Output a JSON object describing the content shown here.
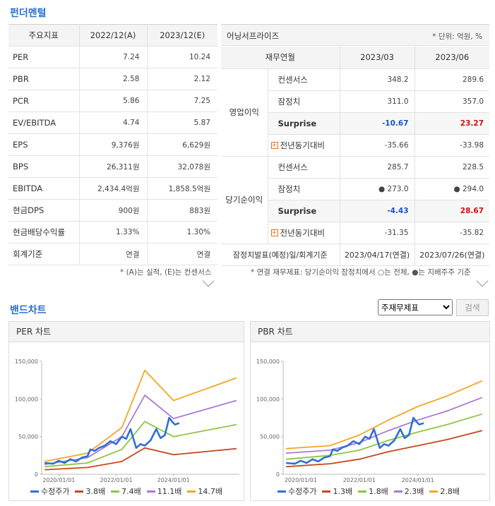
{
  "fundamental": {
    "title": "펀더멘털",
    "indicators_header": [
      "주요지표",
      "2022/12(A)",
      "2023/12(E)"
    ],
    "indicators": [
      {
        "label": "PER",
        "a": "7.24",
        "e": "10.24"
      },
      {
        "label": "PBR",
        "a": "2.58",
        "e": "2.12"
      },
      {
        "label": "PCR",
        "a": "5.86",
        "e": "7.25"
      },
      {
        "label": "EV/EBITDA",
        "a": "4.74",
        "e": "5.87"
      },
      {
        "label": "EPS",
        "a": "9,376원",
        "e": "6,629원"
      },
      {
        "label": "BPS",
        "a": "26,311원",
        "e": "32,078원"
      },
      {
        "label": "EBITDA",
        "a": "2,434.4억원",
        "e": "1,858.5억원"
      },
      {
        "label": "현금DPS",
        "a": "900원",
        "e": "883원"
      },
      {
        "label": "현금배당수익률",
        "a": "1.33%",
        "e": "1.30%"
      },
      {
        "label": "회계기준",
        "a": "연결",
        "e": "연결"
      }
    ],
    "indicators_note": "* (A)는 실적, (E)는 컨센서스",
    "earnings": {
      "title": "어닝서프라이즈",
      "unit": "* 단위: 억원, %",
      "header": [
        "재무연월",
        "2023/03",
        "2023/06"
      ],
      "groups": [
        {
          "name": "영업이익",
          "rows": [
            {
              "label": "컨센서스",
              "v1": "348.2",
              "v2": "289.6"
            },
            {
              "label": "잠정치",
              "v1": "311.0",
              "v2": "357.0"
            },
            {
              "label": "Surprise",
              "v1": "-10.67",
              "v2": "23.27"
            },
            {
              "label": "전년동기대비",
              "v1": "-35.66",
              "v2": "-33.98"
            }
          ]
        },
        {
          "name": "당기순이익",
          "rows": [
            {
              "label": "컨센서스",
              "v1": "285.7",
              "v2": "228.5"
            },
            {
              "label": "잠정치",
              "v1": "● 273.0",
              "v2": "● 294.0"
            },
            {
              "label": "Surprise",
              "v1": "-4.43",
              "v2": "28.67"
            },
            {
              "label": "전년동기대비",
              "v1": "-31.35",
              "v2": "-35.82"
            }
          ]
        }
      ],
      "footer_label": "잠정치발표(예정)일/회계기준",
      "footer_v1": "2023/04/17(연결)",
      "footer_v2": "2023/07/26(연결)",
      "note": "* 연결 재무제표: 당기순이익 잠정치에서 ○는 전체, ●는 지배주주 기준"
    }
  },
  "band": {
    "title": "밴드차트",
    "select_value": "주재무제표",
    "search_label": "검색",
    "per_title": "PER 차트",
    "pbr_title": "PBR 차트"
  },
  "chart_data": [
    {
      "type": "line",
      "title": "PER 차트",
      "x_ticks": [
        "2020/01/01",
        "2022/01/01",
        "2024/01/01"
      ],
      "y_ticks": [
        "0",
        "50,000",
        "100,000",
        "150,000"
      ],
      "ylim": [
        0,
        150000
      ],
      "xlim": [
        2019.4,
        2026.3
      ],
      "series": [
        {
          "name": "수정주가",
          "color": "#2f6fd6",
          "x": [
            2019.5,
            2019.8,
            2020.0,
            2020.2,
            2020.4,
            2020.6,
            2020.8,
            2021.0,
            2021.1,
            2021.25,
            2021.4,
            2021.6,
            2021.8,
            2022.0,
            2022.2,
            2022.35,
            2022.5,
            2022.7,
            2022.85,
            2023.0,
            2023.2,
            2023.4,
            2023.55,
            2023.7,
            2023.85,
            2023.95,
            2024.05,
            2024.2
          ],
          "y": [
            15000,
            14000,
            18000,
            15000,
            20000,
            17000,
            22000,
            24000,
            33000,
            31000,
            35000,
            38000,
            44000,
            40000,
            50000,
            47000,
            60000,
            35000,
            40000,
            38000,
            45000,
            60000,
            48000,
            52000,
            75000,
            70000,
            66000,
            68000
          ]
        },
        {
          "name": "3.8배",
          "color": "#c8461e",
          "x": [
            2019.5,
            2021.0,
            2022.2,
            2023.0,
            2024.0,
            2026.2
          ],
          "y": [
            6000,
            9000,
            17000,
            35000,
            26000,
            34000
          ]
        },
        {
          "name": "7.4배",
          "color": "#8cc63f",
          "x": [
            2019.5,
            2021.0,
            2022.2,
            2023.0,
            2024.0,
            2026.2
          ],
          "y": [
            10000,
            15000,
            33000,
            70000,
            50000,
            66000
          ]
        },
        {
          "name": "11.1배",
          "color": "#a97ad8",
          "x": [
            2019.5,
            2021.0,
            2022.2,
            2023.0,
            2024.0,
            2026.2
          ],
          "y": [
            13000,
            22000,
            50000,
            105000,
            74000,
            98000
          ]
        },
        {
          "name": "14.7배",
          "color": "#f5a623",
          "x": [
            2019.5,
            2021.0,
            2022.2,
            2023.0,
            2024.0,
            2026.2
          ],
          "y": [
            17000,
            28000,
            62000,
            138000,
            98000,
            128000
          ]
        }
      ]
    },
    {
      "type": "line",
      "title": "PBR 차트",
      "x_ticks": [
        "2020/01/01",
        "2022/01/01",
        "2024/01/01"
      ],
      "y_ticks": [
        "0",
        "50,000",
        "100,000",
        "150,000"
      ],
      "ylim": [
        0,
        150000
      ],
      "xlim": [
        2019.4,
        2026.3
      ],
      "series": [
        {
          "name": "수정주가",
          "color": "#2f6fd6",
          "x": [
            2019.5,
            2019.8,
            2020.0,
            2020.2,
            2020.4,
            2020.6,
            2020.8,
            2021.0,
            2021.1,
            2021.25,
            2021.4,
            2021.6,
            2021.8,
            2022.0,
            2022.2,
            2022.35,
            2022.5,
            2022.7,
            2022.85,
            2023.0,
            2023.2,
            2023.4,
            2023.55,
            2023.7,
            2023.85,
            2023.95,
            2024.05,
            2024.2
          ],
          "y": [
            15000,
            14000,
            18000,
            15000,
            20000,
            17000,
            22000,
            24000,
            33000,
            31000,
            35000,
            38000,
            44000,
            40000,
            50000,
            47000,
            60000,
            35000,
            40000,
            38000,
            45000,
            60000,
            48000,
            52000,
            75000,
            70000,
            66000,
            68000
          ]
        },
        {
          "name": "1.3배",
          "color": "#c8461e",
          "x": [
            2019.5,
            2021.0,
            2022.0,
            2023.0,
            2024.0,
            2025.0,
            2026.2
          ],
          "y": [
            10000,
            14000,
            20000,
            30000,
            38000,
            46000,
            58000
          ]
        },
        {
          "name": "1.8배",
          "color": "#8cc63f",
          "x": [
            2019.5,
            2021.0,
            2022.0,
            2023.0,
            2024.0,
            2025.0,
            2026.2
          ],
          "y": [
            20000,
            25000,
            32000,
            45000,
            56000,
            66000,
            80000
          ]
        },
        {
          "name": "2.3배",
          "color": "#a97ad8",
          "x": [
            2019.5,
            2021.0,
            2022.0,
            2023.0,
            2024.0,
            2025.0,
            2026.2
          ],
          "y": [
            28000,
            32000,
            42000,
            58000,
            72000,
            84000,
            102000
          ]
        },
        {
          "name": "2.8배",
          "color": "#f5a623",
          "x": [
            2019.5,
            2021.0,
            2022.0,
            2023.0,
            2024.0,
            2025.0,
            2026.2
          ],
          "y": [
            34000,
            38000,
            52000,
            72000,
            90000,
            104000,
            124000
          ]
        }
      ]
    }
  ]
}
